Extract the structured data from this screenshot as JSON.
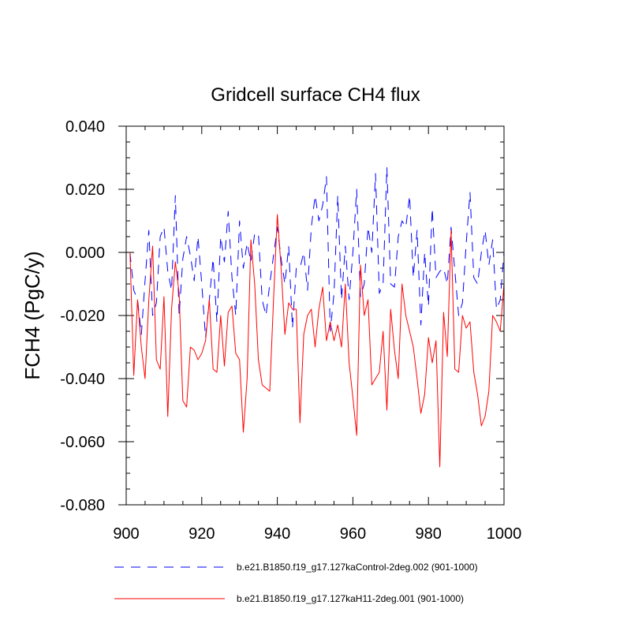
{
  "chart_data": {
    "type": "line",
    "title": "Gridcell surface CH4 flux",
    "ylabel": "FCH4  (PgC/y)",
    "xlabel": "",
    "xlim": [
      900,
      1000
    ],
    "ylim": [
      -0.08,
      0.04
    ],
    "x_ticks": [
      900,
      920,
      940,
      960,
      980,
      1000
    ],
    "x_tick_labels": [
      "900",
      "920",
      "940",
      "960",
      "980",
      "1000"
    ],
    "y_ticks": [
      -0.08,
      -0.06,
      -0.04,
      -0.02,
      0.0,
      0.02,
      0.04
    ],
    "y_tick_labels": [
      "-0.080",
      "-0.060",
      "-0.040",
      "-0.020",
      "0.000",
      "0.020",
      "0.040"
    ],
    "x": [
      901,
      902,
      903,
      904,
      905,
      906,
      907,
      908,
      909,
      910,
      911,
      912,
      913,
      914,
      915,
      916,
      917,
      918,
      919,
      920,
      921,
      922,
      923,
      924,
      925,
      926,
      927,
      928,
      929,
      930,
      931,
      932,
      933,
      934,
      935,
      936,
      937,
      938,
      939,
      940,
      941,
      942,
      943,
      944,
      945,
      946,
      947,
      948,
      949,
      950,
      951,
      952,
      953,
      954,
      955,
      956,
      957,
      958,
      959,
      960,
      961,
      962,
      963,
      964,
      965,
      966,
      967,
      968,
      969,
      970,
      971,
      972,
      973,
      974,
      975,
      976,
      977,
      978,
      979,
      980,
      981,
      982,
      983,
      984,
      985,
      986,
      987,
      988,
      989,
      990,
      991,
      992,
      993,
      994,
      995,
      996,
      997,
      998,
      999,
      1000
    ],
    "series": [
      {
        "name": "b.e21.B1850.f19_g17.127kaControl-2deg.002 (901-1000)",
        "color": "#0000ff",
        "style": "dashed",
        "values": [
          0.0,
          -0.012,
          -0.015,
          -0.026,
          -0.009,
          0.007,
          -0.02,
          -0.016,
          0.005,
          0.008,
          -0.006,
          -0.012,
          0.018,
          -0.02,
          -0.002,
          0.005,
          -0.001,
          -0.009,
          0.005,
          -0.01,
          -0.027,
          -0.015,
          -0.002,
          -0.022,
          0.005,
          -0.003,
          0.013,
          -0.008,
          -0.02,
          0.01,
          -0.005,
          0.003,
          -0.003,
          0.006,
          0.006,
          -0.015,
          -0.02,
          -0.01,
          -0.001,
          0.008,
          -0.002,
          -0.01,
          0.002,
          -0.024,
          -0.005,
          -0.005,
          0.0,
          -0.012,
          0.008,
          0.018,
          0.01,
          0.015,
          0.024,
          -0.025,
          -0.013,
          0.018,
          -0.015,
          0.002,
          -0.015,
          0.0,
          0.02,
          -0.014,
          -0.01,
          0.008,
          0.0,
          0.025,
          -0.013,
          -0.01,
          0.027,
          -0.01,
          -0.011,
          0.005,
          0.01,
          0.008,
          0.018,
          -0.008,
          0.007,
          -0.023,
          0.0,
          -0.017,
          0.014,
          -0.008,
          -0.006,
          -0.005,
          -0.01,
          0.008,
          -0.006,
          -0.02,
          -0.016,
          0.003,
          0.019,
          -0.008,
          -0.01,
          0.0,
          0.007,
          -0.004,
          0.004,
          -0.018,
          -0.015,
          0.0
        ]
      },
      {
        "name": "b.e21.B1850.f19_g17.127kaH11-2deg.001 (901-1000)",
        "color": "#ff0000",
        "style": "solid",
        "values": [
          0.0,
          -0.039,
          -0.015,
          -0.03,
          -0.04,
          -0.015,
          0.002,
          -0.034,
          -0.037,
          -0.014,
          -0.052,
          -0.018,
          -0.003,
          -0.013,
          -0.047,
          -0.049,
          -0.03,
          -0.031,
          -0.034,
          -0.032,
          -0.028,
          -0.015,
          -0.037,
          -0.038,
          -0.02,
          -0.036,
          -0.019,
          -0.017,
          -0.032,
          -0.034,
          -0.057,
          -0.04,
          0.004,
          -0.01,
          -0.034,
          -0.042,
          -0.043,
          -0.044,
          -0.015,
          0.012,
          -0.005,
          -0.026,
          -0.016,
          -0.018,
          -0.018,
          -0.054,
          -0.026,
          -0.02,
          -0.018,
          -0.03,
          -0.018,
          -0.011,
          -0.028,
          -0.022,
          -0.028,
          -0.023,
          -0.03,
          -0.01,
          -0.035,
          -0.046,
          -0.058,
          -0.004,
          -0.02,
          -0.015,
          -0.042,
          -0.04,
          -0.038,
          -0.025,
          -0.05,
          -0.018,
          -0.031,
          -0.04,
          -0.01,
          -0.02,
          -0.025,
          -0.03,
          -0.04,
          -0.051,
          -0.045,
          -0.027,
          -0.035,
          -0.028,
          -0.068,
          -0.019,
          -0.033,
          0.007,
          -0.037,
          -0.038,
          -0.02,
          -0.024,
          -0.022,
          -0.038,
          -0.045,
          -0.055,
          -0.052,
          -0.044,
          -0.02,
          -0.022,
          -0.025,
          -0.01
        ]
      }
    ],
    "legend_position": "bottom"
  }
}
